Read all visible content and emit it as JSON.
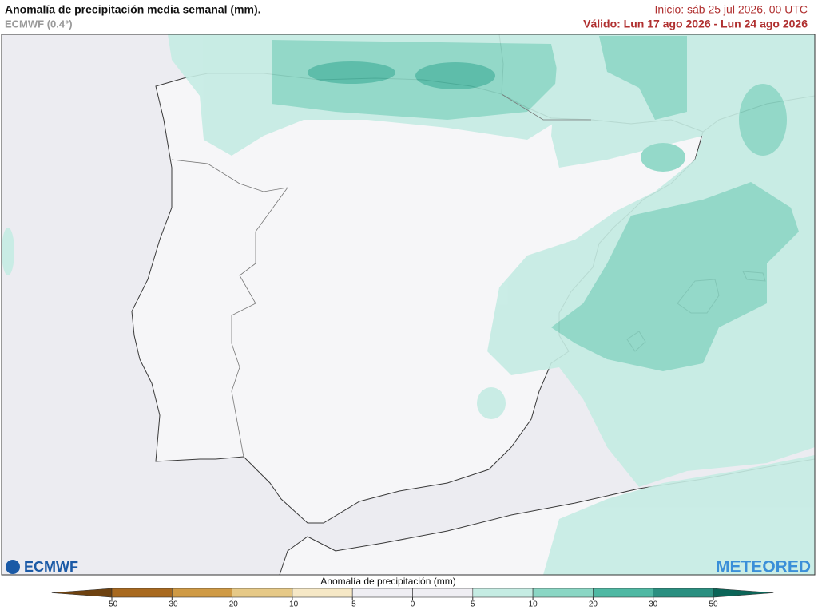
{
  "header": {
    "title": "Anomalía de precipitación media semanal (mm).",
    "model": "ECMWF (0.4°)",
    "init": "Inicio:  sáb 25 jul 2026, 00 UTC",
    "valid": "Válido: Lun 17 ago 2026 - Lun 24 ago 2026"
  },
  "colorbar": {
    "label": "Anomalía de precipitación (mm)",
    "ticks": [
      -50,
      -30,
      -20,
      -10,
      -5,
      0,
      5,
      10,
      20,
      30,
      50
    ],
    "colors": [
      "#6e4210",
      "#a8691f",
      "#cf9a45",
      "#e6c987",
      "#f6e8c6",
      "#efeef3",
      "#efeef3",
      "#c5ece3",
      "#8ad6c4",
      "#4fb8a3",
      "#2a8f80",
      "#0b6558"
    ]
  },
  "logos": {
    "left": "ECMWF",
    "right": "METEORED"
  }
}
